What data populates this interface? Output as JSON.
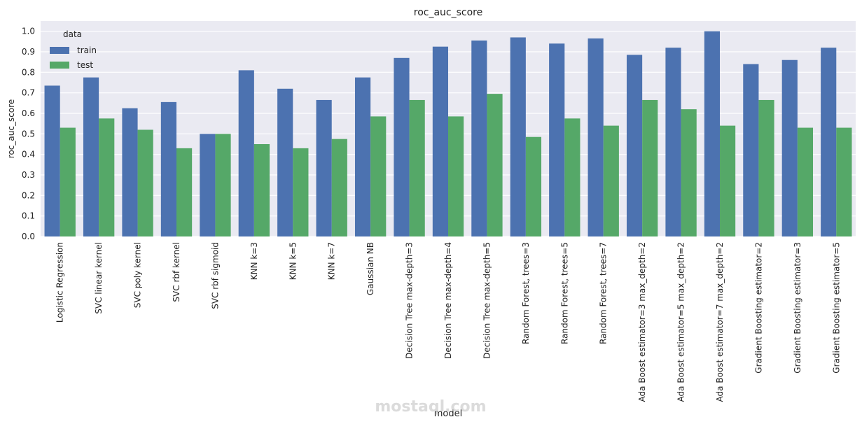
{
  "chart_data": {
    "type": "bar",
    "title": "roc_auc_score",
    "x_label": "model",
    "y_label": "roc_auc_score",
    "categories": [
      "Logistic Regression",
      "SVC linear kernel",
      "SVC poly kernel",
      "SVC rbf kernel",
      "SVC rbf sigmoid",
      "KNN k=3",
      "KNN k=5",
      "KNN k=7",
      "Gaussian NB",
      "Decision Tree max-depth=3",
      "Decision Tree max-depth=4",
      "Decision Tree max-depth=5",
      "Random Forest, trees=3",
      "Random Forest, trees=5",
      "Random Forest, trees=7",
      "Ada Boost estimator=3 max_depth=2",
      "Ada Boost estimator=5 max_depth=2",
      "Ada Boost estimator=7 max_depth=2",
      "Gradient Boosting estimator=2",
      "Gradient Boosting estimator=3",
      "Gradient Boosting estimator=5"
    ],
    "series": [
      {
        "name": "train",
        "color": "#4c72b0",
        "values": [
          0.735,
          0.775,
          0.625,
          0.655,
          0.5,
          0.81,
          0.72,
          0.665,
          0.775,
          0.87,
          0.925,
          0.955,
          0.97,
          0.94,
          0.965,
          0.885,
          0.92,
          1.0,
          0.84,
          0.86,
          0.92
        ]
      },
      {
        "name": "test",
        "color": "#55a868",
        "values": [
          0.53,
          0.575,
          0.52,
          0.43,
          0.5,
          0.45,
          0.43,
          0.475,
          0.585,
          0.665,
          0.585,
          0.695,
          0.485,
          0.575,
          0.54,
          0.665,
          0.62,
          0.54,
          0.665,
          0.53,
          0.53
        ]
      }
    ],
    "legend_title": "data",
    "legend_position": "upper-left",
    "ylim": [
      0,
      1.05
    ],
    "yticks": [
      0.0,
      0.1,
      0.2,
      0.3,
      0.4,
      0.5,
      0.6,
      0.7,
      0.8,
      0.9,
      1.0
    ],
    "grid": true,
    "watermark": "mostaql.com"
  }
}
